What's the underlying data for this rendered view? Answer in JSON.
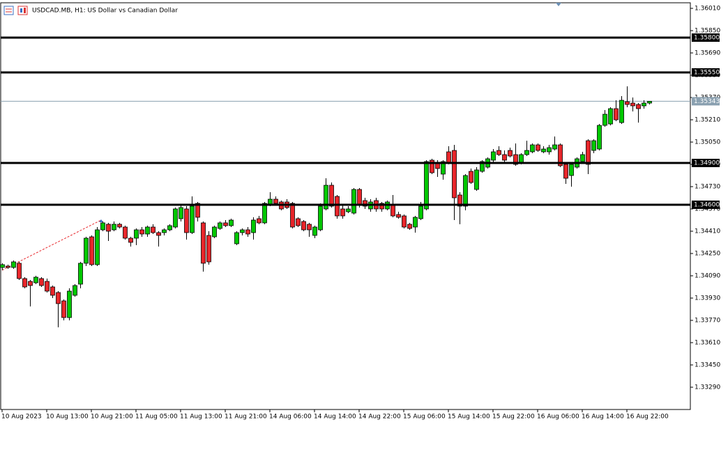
{
  "chart_data": {
    "type": "candlestick",
    "title": "USDCAD.MB, H1:  US Dollar vs Canadian Dollar",
    "up_color": "#00c800",
    "down_color": "#e8262b",
    "ylim": [
      1.3313,
      1.3605
    ],
    "yticks": [
      {
        "value": 1.3601,
        "label": "1.36010"
      },
      {
        "value": 1.3585,
        "label": "1.35850"
      },
      {
        "value": 1.3569,
        "label": "1.35690"
      },
      {
        "value": 1.3553,
        "label": "1.35530"
      },
      {
        "value": 1.3537,
        "label": "1.35370"
      },
      {
        "value": 1.3521,
        "label": "1.35210"
      },
      {
        "value": 1.3505,
        "label": "1.35050"
      },
      {
        "value": 1.3489,
        "label": "1.34890"
      },
      {
        "value": 1.3473,
        "label": "1.34730"
      },
      {
        "value": 1.3457,
        "label": "1.34570"
      },
      {
        "value": 1.3441,
        "label": "1.34410"
      },
      {
        "value": 1.3425,
        "label": "1.34250"
      },
      {
        "value": 1.3409,
        "label": "1.34090"
      },
      {
        "value": 1.3393,
        "label": "1.33930"
      },
      {
        "value": 1.3377,
        "label": "1.33770"
      },
      {
        "value": 1.3361,
        "label": "1.33610"
      },
      {
        "value": 1.3345,
        "label": "1.33450"
      },
      {
        "value": 1.3329,
        "label": "1.33290"
      }
    ],
    "levels": [
      {
        "value": 1.358,
        "label": "1.35800"
      },
      {
        "value": 1.3555,
        "label": "1.35550"
      },
      {
        "value": 1.349,
        "label": "1.34900"
      },
      {
        "value": 1.346,
        "label": "1.34600"
      }
    ],
    "bid": 1.35343,
    "categories": [
      "10 Aug 2023",
      null,
      null,
      null,
      null,
      null,
      null,
      null,
      "10 Aug 13:00",
      null,
      null,
      null,
      null,
      null,
      null,
      null,
      "10 Aug 21:00",
      null,
      null,
      null,
      null,
      null,
      null,
      null,
      "11 Aug 05:00",
      null,
      null,
      null,
      null,
      null,
      null,
      null,
      "11 Aug 13:00",
      null,
      null,
      null,
      null,
      null,
      null,
      null,
      "11 Aug 21:00",
      null,
      null,
      null,
      null,
      null,
      null,
      null,
      "14 Aug 06:00",
      null,
      null,
      null,
      null,
      null,
      null,
      null,
      "14 Aug 14:00",
      null,
      null,
      null,
      null,
      null,
      null,
      null,
      "14 Aug 22:00",
      null,
      null,
      null,
      null,
      null,
      null,
      null,
      "15 Aug 06:00",
      null,
      null,
      null,
      null,
      null,
      null,
      null,
      "15 Aug 14:00",
      null,
      null,
      null,
      null,
      null,
      null,
      null,
      "15 Aug 22:00",
      null,
      null,
      null,
      null,
      null,
      null,
      null,
      "16 Aug 06:00",
      null,
      null,
      null,
      null,
      null,
      null,
      null,
      "16 Aug 14:00",
      null,
      null,
      null,
      null,
      null,
      null,
      null,
      "16 Aug 22:00",
      null,
      null,
      null,
      null
    ],
    "open": [
      1.3415,
      1.3416,
      1.3415,
      1.3418,
      1.3407,
      1.3405,
      1.3404,
      1.3407,
      1.3405,
      1.3401,
      1.3397,
      1.3391,
      1.3379,
      1.3395,
      1.3403,
      1.3418,
      1.3437,
      1.3417,
      1.3442,
      1.3446,
      1.3442,
      1.3446,
      1.3444,
      1.3436,
      1.3436,
      1.3442,
      1.3439,
      1.3444,
      1.344,
      1.344,
      1.3442,
      1.3444,
      1.345,
      1.3457,
      1.344,
      1.3461,
      1.3447,
      1.3438,
      1.3437,
      1.3443,
      1.3447,
      1.3445,
      1.3432,
      1.344,
      1.3442,
      1.344,
      1.345,
      1.3447,
      1.346,
      1.3464,
      1.3462,
      1.3462,
      1.3461,
      1.345,
      1.3448,
      1.3446,
      1.3438,
      1.3442,
      1.3457,
      1.3474,
      1.3466,
      1.3457,
      1.3455,
      1.3454,
      1.3471,
      1.3463,
      1.3457,
      1.3463,
      1.3461,
      1.3457,
      1.346,
      1.3453,
      1.3452,
      1.3446,
      1.3444,
      1.345,
      1.3457,
      1.3492,
      1.349,
      1.3482,
      1.3498,
      1.3499,
      1.3467,
      1.3459,
      1.3484,
      1.3471,
      1.3484,
      1.3487,
      1.3492,
      1.3499,
      1.3496,
      1.3499,
      1.3496,
      1.349,
      1.3496,
      1.3498,
      1.3503,
      1.3498,
      1.3498,
      1.35,
      1.3503,
      1.3489,
      1.3481,
      1.3487,
      1.3491,
      1.3506,
      1.3499,
      1.35,
      1.3517,
      1.3518,
      1.3529,
      1.3519,
      1.3534,
      1.3533,
      1.3532,
      1.3531,
      1.3533
    ],
    "high": [
      1.3418,
      1.3417,
      1.342,
      1.3419,
      1.3408,
      1.3406,
      1.3409,
      1.3408,
      1.3407,
      1.3402,
      1.3398,
      1.3392,
      1.34,
      1.3403,
      1.3419,
      1.3437,
      1.3438,
      1.3444,
      1.3448,
      1.3447,
      1.3448,
      1.3447,
      1.3445,
      1.3437,
      1.3443,
      1.3444,
      1.3445,
      1.3446,
      1.3441,
      1.3443,
      1.3446,
      1.3458,
      1.346,
      1.3459,
      1.3466,
      1.3462,
      1.3448,
      1.3441,
      1.3445,
      1.3448,
      1.3449,
      1.345,
      1.3441,
      1.3443,
      1.3444,
      1.3451,
      1.3452,
      1.3462,
      1.3469,
      1.3466,
      1.3463,
      1.3464,
      1.3462,
      1.3451,
      1.3449,
      1.3447,
      1.3445,
      1.3461,
      1.3479,
      1.3476,
      1.3467,
      1.346,
      1.3459,
      1.3472,
      1.3472,
      1.3465,
      1.3464,
      1.3465,
      1.3462,
      1.3463,
      1.3467,
      1.3455,
      1.3453,
      1.3447,
      1.3452,
      1.3462,
      1.3492,
      1.3493,
      1.3492,
      1.3492,
      1.3502,
      1.3503,
      1.3469,
      1.3482,
      1.3486,
      1.3487,
      1.3492,
      1.3494,
      1.35,
      1.3502,
      1.3499,
      1.3501,
      1.3504,
      1.3497,
      1.3506,
      1.3504,
      1.3504,
      1.3502,
      1.3503,
      1.3509,
      1.3504,
      1.349,
      1.349,
      1.3494,
      1.3498,
      1.3507,
      1.3507,
      1.3518,
      1.3528,
      1.353,
      1.3535,
      1.3538,
      1.3545,
      1.3537,
      1.3533,
      1.3535,
      1.35345
    ],
    "low": [
      1.3413,
      1.3414,
      1.3414,
      1.3406,
      1.34,
      1.3387,
      1.3403,
      1.3401,
      1.3397,
      1.3393,
      1.3372,
      1.3377,
      1.3377,
      1.3394,
      1.34,
      1.3416,
      1.3416,
      1.3416,
      1.3441,
      1.3434,
      1.3441,
      1.3443,
      1.3435,
      1.343,
      1.3431,
      1.3437,
      1.3437,
      1.3439,
      1.343,
      1.3438,
      1.3441,
      1.3443,
      1.3448,
      1.3435,
      1.3439,
      1.3448,
      1.3412,
      1.3417,
      1.3436,
      1.3442,
      1.3444,
      1.3444,
      1.3431,
      1.3438,
      1.3437,
      1.3435,
      1.3446,
      1.3446,
      1.3459,
      1.346,
      1.3456,
      1.3457,
      1.3443,
      1.3444,
      1.3441,
      1.3437,
      1.3436,
      1.3441,
      1.3456,
      1.3458,
      1.345,
      1.345,
      1.3454,
      1.3453,
      1.3458,
      1.3457,
      1.3455,
      1.3455,
      1.3455,
      1.3456,
      1.3451,
      1.345,
      1.3443,
      1.3442,
      1.344,
      1.3449,
      1.3456,
      1.3482,
      1.348,
      1.3478,
      1.3489,
      1.3449,
      1.3446,
      1.3456,
      1.3475,
      1.347,
      1.3483,
      1.3486,
      1.349,
      1.3495,
      1.349,
      1.3494,
      1.3488,
      1.3489,
      1.3495,
      1.3497,
      1.3498,
      1.3497,
      1.3496,
      1.3499,
      1.3487,
      1.3475,
      1.3473,
      1.3486,
      1.349,
      1.3482,
      1.3497,
      1.3499,
      1.3516,
      1.3517,
      1.352,
      1.3518,
      1.353,
      1.3527,
      1.3519,
      1.3529,
      1.3532
    ],
    "close": [
      1.3417,
      1.3415,
      1.3419,
      1.3407,
      1.3401,
      1.3402,
      1.3408,
      1.3402,
      1.3398,
      1.3395,
      1.3389,
      1.3379,
      1.3398,
      1.3402,
      1.3418,
      1.3436,
      1.3417,
      1.3442,
      1.3447,
      1.3441,
      1.3446,
      1.3444,
      1.3436,
      1.3433,
      1.3442,
      1.3439,
      1.3444,
      1.344,
      1.3438,
      1.3442,
      1.3445,
      1.3457,
      1.3458,
      1.344,
      1.3459,
      1.3451,
      1.3418,
      1.3419,
      1.3444,
      1.3447,
      1.3445,
      1.3449,
      1.344,
      1.3442,
      1.3439,
      1.3449,
      1.3447,
      1.3461,
      1.3464,
      1.3461,
      1.3457,
      1.3458,
      1.3444,
      1.3445,
      1.3442,
      1.3442,
      1.3444,
      1.3459,
      1.3474,
      1.3459,
      1.3452,
      1.3452,
      1.3457,
      1.3471,
      1.346,
      1.3459,
      1.3462,
      1.3457,
      1.3457,
      1.3462,
      1.3452,
      1.3451,
      1.3444,
      1.3443,
      1.3451,
      1.3459,
      1.3491,
      1.3483,
      1.3486,
      1.3491,
      1.349,
      1.3465,
      1.3459,
      1.3481,
      1.3476,
      1.3485,
      1.3491,
      1.3493,
      1.3498,
      1.3496,
      1.3492,
      1.3495,
      1.3489,
      1.3496,
      1.3499,
      1.3503,
      1.3499,
      1.35,
      1.3501,
      1.3503,
      1.3488,
      1.3479,
      1.3489,
      1.3493,
      1.3496,
      1.3489,
      1.3506,
      1.3517,
      1.3525,
      1.3529,
      1.3521,
      1.3535,
      1.3532,
      1.3531,
      1.3529,
      1.3533,
      1.35343
    ]
  }
}
